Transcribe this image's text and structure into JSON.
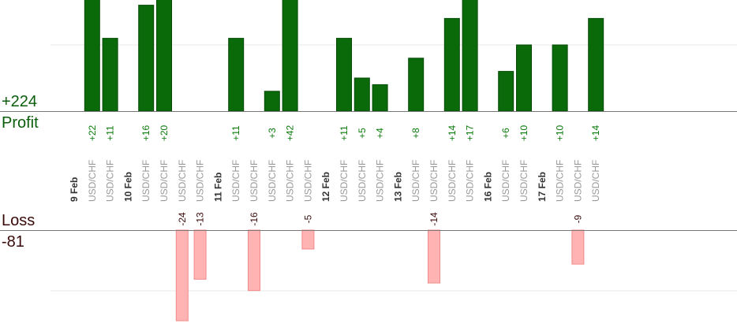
{
  "summary": {
    "profit_total": "+224",
    "profit_label": "Profit",
    "loss_label": "Loss",
    "loss_total": "-81"
  },
  "colors": {
    "profit_bar": "#0a6a0a",
    "profit_bar_dark": "#064a06",
    "profit_text": "#0a7a0a",
    "loss_bar": "#ffb3b3",
    "loss_bar_border": "#f08a8a",
    "loss_text": "#3a0a0a",
    "date_text": "#333333",
    "pair_text": "#999999",
    "axis": "#777777",
    "grid": "#e8e8e8"
  },
  "chart_data": {
    "type": "bar",
    "ylim_profit": [
      0,
      25
    ],
    "ylim_loss": [
      0,
      24
    ],
    "slots": [
      {
        "kind": "date",
        "label": "9 Feb"
      },
      {
        "kind": "trade",
        "label": "USD/CHF",
        "value": 22,
        "display": "+22"
      },
      {
        "kind": "trade",
        "label": "USD/CHF",
        "value": 11,
        "display": "+11"
      },
      {
        "kind": "date",
        "label": "10 Feb"
      },
      {
        "kind": "trade",
        "label": "USD/CHF",
        "value": 16,
        "display": "+16"
      },
      {
        "kind": "trade",
        "label": "USD/CHF",
        "value": 20,
        "display": "+20"
      },
      {
        "kind": "trade",
        "label": "USD/CHF",
        "value": -24,
        "display": "-24"
      },
      {
        "kind": "trade",
        "label": "USD/CHF",
        "value": -13,
        "display": "-13"
      },
      {
        "kind": "date",
        "label": "11 Feb"
      },
      {
        "kind": "trade",
        "label": "USD/CHF",
        "value": 11,
        "display": "+11"
      },
      {
        "kind": "trade",
        "label": "USD/CHF",
        "value": -16,
        "display": "-16"
      },
      {
        "kind": "trade",
        "label": "USD/CHF",
        "value": 3,
        "display": "+3"
      },
      {
        "kind": "trade",
        "label": "USD/CHF",
        "value": 42,
        "display": "+42"
      },
      {
        "kind": "trade",
        "label": "USD/CHF",
        "value": -5,
        "display": "-5"
      },
      {
        "kind": "date",
        "label": "12 Feb"
      },
      {
        "kind": "trade",
        "label": "USD/CHF",
        "value": 11,
        "display": "+11"
      },
      {
        "kind": "trade",
        "label": "USD/CHF",
        "value": 5,
        "display": "+5"
      },
      {
        "kind": "trade",
        "label": "USD/CHF",
        "value": 4,
        "display": "+4"
      },
      {
        "kind": "date",
        "label": "13 Feb"
      },
      {
        "kind": "trade",
        "label": "USD/CHF",
        "value": 8,
        "display": "+8"
      },
      {
        "kind": "trade",
        "label": "USD/CHF",
        "value": -14,
        "display": "-14"
      },
      {
        "kind": "trade",
        "label": "USD/CHF",
        "value": 14,
        "display": "+14"
      },
      {
        "kind": "trade",
        "label": "USD/CHF",
        "value": 17,
        "display": "+17"
      },
      {
        "kind": "date",
        "label": "16 Feb"
      },
      {
        "kind": "trade",
        "label": "USD/CHF",
        "value": 6,
        "display": "+6"
      },
      {
        "kind": "trade",
        "label": "USD/CHF",
        "value": 10,
        "display": "+10"
      },
      {
        "kind": "date",
        "label": "17 Feb"
      },
      {
        "kind": "trade",
        "label": "USD/CHF",
        "value": 10,
        "display": "+10"
      },
      {
        "kind": "trade",
        "label": "USD/CHF",
        "value": -9,
        "display": "-9"
      },
      {
        "kind": "trade",
        "label": "USD/CHF",
        "value": 14,
        "display": "+14"
      }
    ]
  }
}
